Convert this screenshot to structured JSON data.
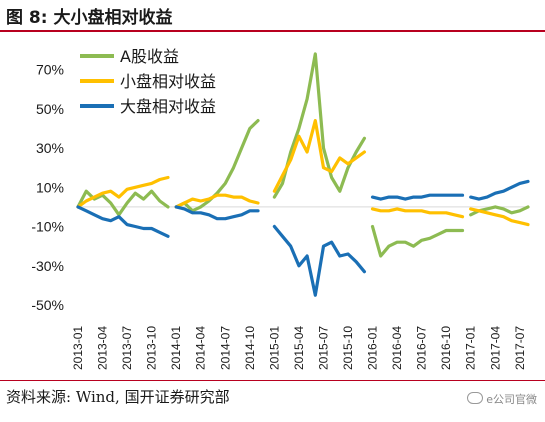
{
  "figure": {
    "title": "图 8:  大小盘相对收益",
    "source": "资料来源:  Wind,  国开证券研究部",
    "watermark": "e公司官微"
  },
  "colors": {
    "a_share": "#8dbb52",
    "small_cap": "#ffc000",
    "large_cap": "#1a6fb5",
    "title_rule": "#b8001f",
    "zero_line": "#d9d9d9"
  },
  "chart_data": {
    "type": "line",
    "title": "",
    "xlabel": "",
    "ylabel": "",
    "ylim": [
      -0.5,
      0.8
    ],
    "y_ticks": [
      "70%",
      "50%",
      "30%",
      "10%",
      "-10%",
      "-30%",
      "-50%"
    ],
    "y_tick_values": [
      0.7,
      0.5,
      0.3,
      0.1,
      -0.1,
      -0.3,
      -0.5
    ],
    "x_ticks": [
      "2013-01",
      "2013-04",
      "2013-07",
      "2013-10",
      "2014-01",
      "2014-04",
      "2014-07",
      "2014-10",
      "2015-01",
      "2015-04",
      "2015-07",
      "2015-10",
      "2016-01",
      "2016-04",
      "2016-07",
      "2016-10",
      "2017-01",
      "2017-04",
      "2017-07"
    ],
    "x": [
      "2013-01",
      "2013-02",
      "2013-03",
      "2013-04",
      "2013-05",
      "2013-06",
      "2013-07",
      "2013-08",
      "2013-09",
      "2013-10",
      "2013-11",
      "2013-12",
      "2014-01",
      "2014-02",
      "2014-03",
      "2014-04",
      "2014-05",
      "2014-06",
      "2014-07",
      "2014-08",
      "2014-09",
      "2014-10",
      "2014-11",
      "2014-12",
      "2015-01",
      "2015-02",
      "2015-03",
      "2015-04",
      "2015-05",
      "2015-06",
      "2015-07",
      "2015-08",
      "2015-09",
      "2015-10",
      "2015-11",
      "2015-12",
      "2016-01",
      "2016-02",
      "2016-03",
      "2016-04",
      "2016-05",
      "2016-06",
      "2016-07",
      "2016-08",
      "2016-09",
      "2016-10",
      "2016-11",
      "2016-12",
      "2017-01",
      "2017-02",
      "2017-03",
      "2017-04",
      "2017-05",
      "2017-06",
      "2017-07",
      "2017-08"
    ],
    "legend_position": "top-left",
    "series": [
      {
        "name": "A股收益",
        "segments": [
          {
            "start": 0,
            "values": [
              0.0,
              0.08,
              0.04,
              0.06,
              0.02,
              -0.04,
              0.02,
              0.07,
              0.04,
              0.08,
              0.03,
              0.0
            ]
          },
          {
            "start": 12,
            "values": [
              0.0,
              0.02,
              -0.02,
              0.0,
              0.03,
              0.07,
              0.12,
              0.2,
              0.3,
              0.4,
              0.44
            ]
          },
          {
            "start": 24,
            "values": [
              0.05,
              0.12,
              0.28,
              0.4,
              0.55,
              0.78,
              0.3,
              0.15,
              0.08,
              0.2,
              0.28,
              0.35
            ]
          },
          {
            "start": 36,
            "values": [
              -0.1,
              -0.25,
              -0.2,
              -0.18,
              -0.18,
              -0.2,
              -0.17,
              -0.16,
              -0.14,
              -0.12,
              -0.12,
              -0.12
            ]
          },
          {
            "start": 48,
            "values": [
              -0.04,
              -0.02,
              -0.01,
              0.0,
              -0.01,
              -0.03,
              -0.02,
              0.0
            ]
          }
        ]
      },
      {
        "name": "小盘相对收益",
        "segments": [
          {
            "start": 0,
            "values": [
              0.0,
              0.03,
              0.05,
              0.07,
              0.08,
              0.05,
              0.09,
              0.1,
              0.11,
              0.12,
              0.14,
              0.15
            ]
          },
          {
            "start": 12,
            "values": [
              0.0,
              0.02,
              0.04,
              0.03,
              0.04,
              0.06,
              0.06,
              0.05,
              0.05,
              0.03,
              0.02
            ]
          },
          {
            "start": 24,
            "values": [
              0.08,
              0.16,
              0.24,
              0.36,
              0.28,
              0.44,
              0.2,
              0.18,
              0.25,
              0.22,
              0.25,
              0.28
            ]
          },
          {
            "start": 36,
            "values": [
              -0.01,
              -0.02,
              -0.02,
              -0.01,
              -0.02,
              -0.02,
              -0.02,
              -0.03,
              -0.03,
              -0.03,
              -0.04,
              -0.05
            ]
          },
          {
            "start": 48,
            "values": [
              -0.01,
              -0.02,
              -0.03,
              -0.04,
              -0.05,
              -0.07,
              -0.08,
              -0.09
            ]
          }
        ]
      },
      {
        "name": "大盘相对收益",
        "segments": [
          {
            "start": 0,
            "values": [
              0.0,
              -0.02,
              -0.04,
              -0.06,
              -0.07,
              -0.05,
              -0.09,
              -0.1,
              -0.11,
              -0.11,
              -0.13,
              -0.15
            ]
          },
          {
            "start": 12,
            "values": [
              0.0,
              -0.01,
              -0.03,
              -0.03,
              -0.04,
              -0.06,
              -0.06,
              -0.05,
              -0.04,
              -0.02,
              -0.02
            ]
          },
          {
            "start": 24,
            "values": [
              -0.1,
              -0.15,
              -0.2,
              -0.3,
              -0.25,
              -0.45,
              -0.2,
              -0.18,
              -0.25,
              -0.24,
              -0.28,
              -0.33
            ]
          },
          {
            "start": 36,
            "values": [
              0.05,
              0.04,
              0.05,
              0.05,
              0.04,
              0.05,
              0.05,
              0.06,
              0.06,
              0.06,
              0.06,
              0.06
            ]
          },
          {
            "start": 48,
            "values": [
              0.05,
              0.04,
              0.05,
              0.07,
              0.08,
              0.1,
              0.12,
              0.13
            ]
          }
        ]
      }
    ]
  }
}
